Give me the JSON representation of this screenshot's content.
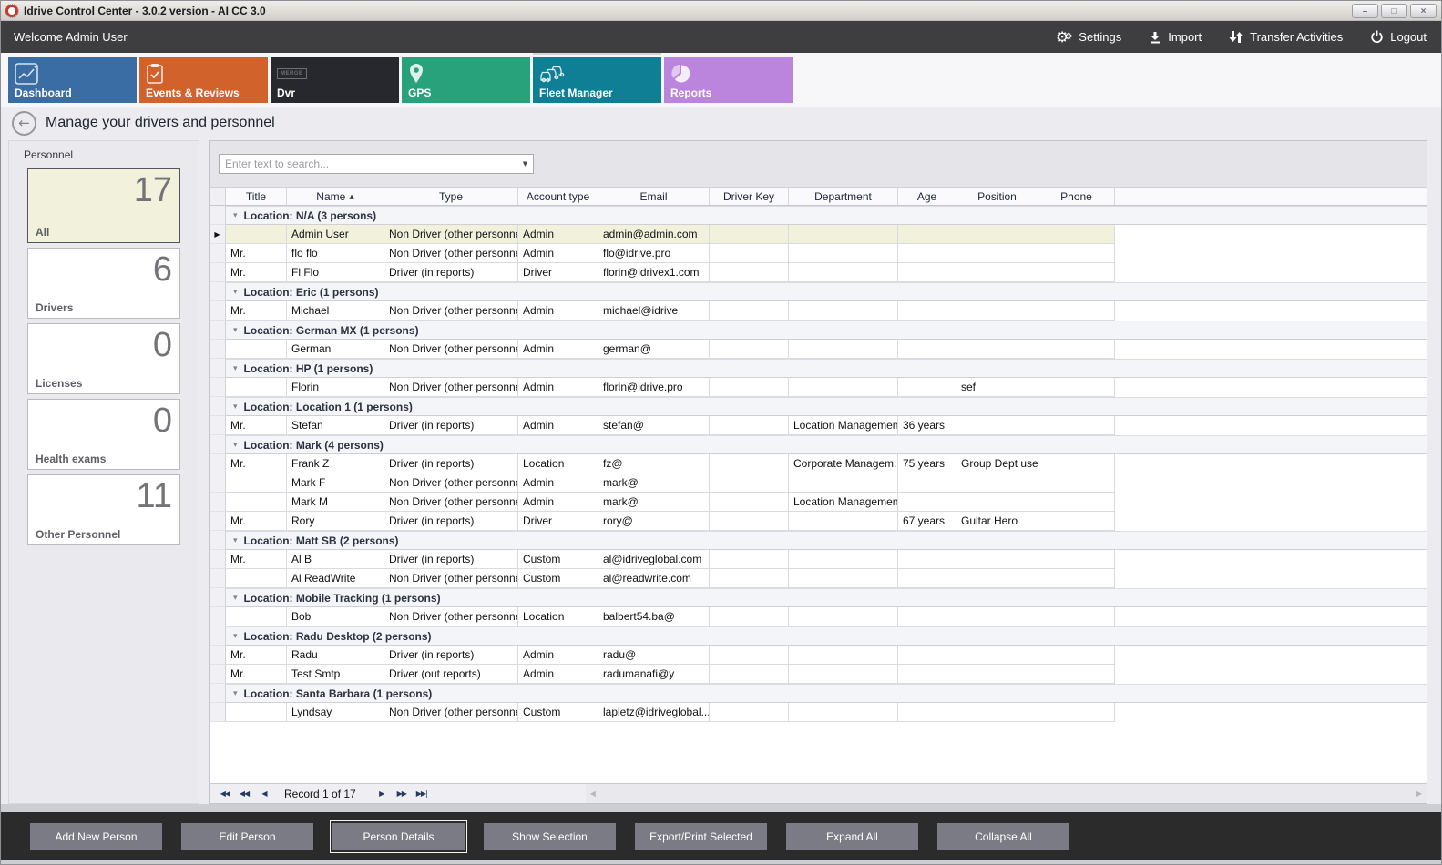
{
  "window": {
    "title": "Idrive Control Center - 3.0.2 version - AI CC 3.0",
    "controls": [
      "minimize",
      "maximize",
      "close"
    ]
  },
  "menubar": {
    "welcome": "Welcome Admin User",
    "items": [
      {
        "label": "Settings",
        "icon": "gears-icon"
      },
      {
        "label": "Import",
        "icon": "import-icon"
      },
      {
        "label": "Transfer Activities",
        "icon": "transfer-icon"
      },
      {
        "label": "Logout",
        "icon": "power-icon"
      }
    ]
  },
  "tabs": [
    {
      "label": "Dashboard",
      "icon": "chart-icon",
      "color": "#3a6da4",
      "selected": false
    },
    {
      "label": "Events & Reviews",
      "icon": "clipboard-icon",
      "color": "#d2622c",
      "selected": false
    },
    {
      "label": "Dvr",
      "icon": "merge-logo-icon",
      "icon_text": "MERGE",
      "color": "#26282d",
      "selected": false
    },
    {
      "label": "GPS",
      "icon": "map-pin-icon",
      "color": "#27a27b",
      "selected": false
    },
    {
      "label": "Fleet Manager",
      "icon": "vehicles-icon",
      "color": "#0f7f96",
      "selected": true
    },
    {
      "label": "Reports",
      "icon": "pie-chart-icon",
      "color": "#bb85dd",
      "selected": false
    }
  ],
  "page": {
    "heading": "Manage your drivers and personnel"
  },
  "sidebar": {
    "title": "Personnel",
    "cards": [
      {
        "label": "All",
        "count": "17",
        "selected": true
      },
      {
        "label": "Drivers",
        "count": "6",
        "selected": false
      },
      {
        "label": "Licenses",
        "count": "0",
        "selected": false
      },
      {
        "label": "Health exams",
        "count": "0",
        "selected": false
      },
      {
        "label": "Other Personnel",
        "count": "11",
        "selected": false
      }
    ]
  },
  "search": {
    "placeholder": "Enter text to search..."
  },
  "table": {
    "columns": [
      {
        "key": "title",
        "label": "Title"
      },
      {
        "key": "name",
        "label": "Name",
        "sorted": "asc"
      },
      {
        "key": "type",
        "label": "Type"
      },
      {
        "key": "account_type",
        "label": "Account type"
      },
      {
        "key": "email",
        "label": "Email"
      },
      {
        "key": "driver_key",
        "label": "Driver Key"
      },
      {
        "key": "department",
        "label": "Department"
      },
      {
        "key": "age",
        "label": "Age"
      },
      {
        "key": "position",
        "label": "Position"
      },
      {
        "key": "phone",
        "label": "Phone"
      }
    ],
    "groups": [
      {
        "label": "Location: N/A (3 persons)",
        "rows": [
          {
            "selected": true,
            "title": "",
            "name": "Admin User",
            "type": "Non Driver (other personnel)",
            "account_type": "Admin",
            "email": "admin@admin.com",
            "driver_key": "",
            "department": "",
            "age": "",
            "position": "",
            "phone": ""
          },
          {
            "selected": false,
            "title": "Mr.",
            "name": "flo flo",
            "type": "Non Driver (other personnel)",
            "account_type": "Admin",
            "email": "flo@idrive.pro",
            "driver_key": "",
            "department": "",
            "age": "",
            "position": "",
            "phone": ""
          },
          {
            "selected": false,
            "title": "Mr.",
            "name": "Fl Flo",
            "type": "Driver (in reports)",
            "account_type": "Driver",
            "email": "florin@idrivex1.com",
            "driver_key": "",
            "department": "",
            "age": "",
            "position": "",
            "phone": ""
          }
        ]
      },
      {
        "label": "Location: Eric (1 persons)",
        "rows": [
          {
            "selected": false,
            "title": "Mr.",
            "name": "Michael",
            "type": "Non Driver (other personnel)",
            "account_type": "Admin",
            "email": "michael@idrive",
            "driver_key": "",
            "department": "",
            "age": "",
            "position": "",
            "phone": ""
          }
        ]
      },
      {
        "label": "Location: German MX (1 persons)",
        "rows": [
          {
            "selected": false,
            "title": "",
            "name": "German",
            "type": "Non Driver (other personnel)",
            "account_type": "Admin",
            "email": "german@",
            "driver_key": "",
            "department": "",
            "age": "",
            "position": "",
            "phone": ""
          }
        ]
      },
      {
        "label": "Location: HP (1 persons)",
        "rows": [
          {
            "selected": false,
            "title": "",
            "name": "Florin",
            "type": "Non Driver (other personnel)",
            "account_type": "Admin",
            "email": "florin@idrive.pro",
            "driver_key": "",
            "department": "",
            "age": "",
            "position": "sef",
            "phone": ""
          }
        ]
      },
      {
        "label": "Location: Location 1 (1 persons)",
        "rows": [
          {
            "selected": false,
            "title": "Mr.",
            "name": "Stefan",
            "type": "Driver (in reports)",
            "account_type": "Admin",
            "email": "stefan@",
            "driver_key": "",
            "department": "Location Management",
            "age": "36 years",
            "position": "",
            "phone": ""
          }
        ]
      },
      {
        "label": "Location: Mark (4 persons)",
        "rows": [
          {
            "selected": false,
            "title": "Mr.",
            "name": "Frank Z",
            "type": "Driver (in reports)",
            "account_type": "Location",
            "email": "fz@",
            "driver_key": "",
            "department": "Corporate Managem...",
            "age": "75 years",
            "position": "Group Dept user",
            "phone": ""
          },
          {
            "selected": false,
            "title": "",
            "name": "Mark F",
            "type": "Non Driver (other personnel)",
            "account_type": "Admin",
            "email": "mark@",
            "driver_key": "",
            "department": "",
            "age": "",
            "position": "",
            "phone": ""
          },
          {
            "selected": false,
            "title": "",
            "name": "Mark M",
            "type": "Non Driver (other personnel)",
            "account_type": "Admin",
            "email": "mark@",
            "driver_key": "",
            "department": "Location Management",
            "age": "",
            "position": "",
            "phone": ""
          },
          {
            "selected": false,
            "title": "Mr.",
            "name": "Rory",
            "type": "Driver (in reports)",
            "account_type": "Driver",
            "email": "rory@",
            "driver_key": "",
            "department": "",
            "age": "67 years",
            "position": "Guitar Hero",
            "phone": ""
          }
        ]
      },
      {
        "label": "Location: Matt SB (2 persons)",
        "rows": [
          {
            "selected": false,
            "title": "Mr.",
            "name": "Al B",
            "type": "Driver (in reports)",
            "account_type": "Custom",
            "email": "al@idriveglobal.com",
            "driver_key": "",
            "department": "",
            "age": "",
            "position": "",
            "phone": ""
          },
          {
            "selected": false,
            "title": "",
            "name": "Al ReadWrite",
            "type": "Non Driver (other personnel)",
            "account_type": "Custom",
            "email": "al@readwrite.com",
            "driver_key": "",
            "department": "",
            "age": "",
            "position": "",
            "phone": ""
          }
        ]
      },
      {
        "label": "Location: Mobile Tracking (1 persons)",
        "rows": [
          {
            "selected": false,
            "title": "",
            "name": "Bob",
            "type": "Non Driver (other personnel)",
            "account_type": "Location",
            "email": "balbert54.ba@",
            "driver_key": "",
            "department": "",
            "age": "",
            "position": "",
            "phone": ""
          }
        ]
      },
      {
        "label": "Location: Radu Desktop (2 persons)",
        "rows": [
          {
            "selected": false,
            "title": "Mr.",
            "name": "Radu",
            "type": "Driver (in reports)",
            "account_type": "Admin",
            "email": "radu@",
            "driver_key": "",
            "department": "",
            "age": "",
            "position": "",
            "phone": ""
          },
          {
            "selected": false,
            "title": "Mr.",
            "name": "Test Smtp",
            "type": "Driver (out reports)",
            "account_type": "Admin",
            "email": "radumanafi@y",
            "driver_key": "",
            "department": "",
            "age": "",
            "position": "",
            "phone": ""
          }
        ]
      },
      {
        "label": "Location: Santa Barbara (1 persons)",
        "rows": [
          {
            "selected": false,
            "title": "",
            "name": "Lyndsay",
            "type": "Non Driver (other personnel)",
            "account_type": "Custom",
            "email": "lapletz@idriveglobal....",
            "driver_key": "",
            "department": "",
            "age": "",
            "position": "",
            "phone": ""
          }
        ]
      }
    ]
  },
  "navigator": {
    "left_buttons": [
      "first",
      "prev-page",
      "prev"
    ],
    "record_text": "Record 1 of 17",
    "right_buttons": [
      "next",
      "next-page",
      "last"
    ]
  },
  "footer": {
    "buttons": [
      {
        "label": "Add New Person",
        "focused": false
      },
      {
        "label": "Edit Person",
        "focused": false
      },
      {
        "label": "Person Details",
        "focused": true
      },
      {
        "label": "Show Selection",
        "focused": false
      },
      {
        "label": "Export/Print Selected",
        "focused": false
      },
      {
        "label": "Expand All",
        "focused": false
      },
      {
        "label": "Collapse All",
        "focused": false
      }
    ]
  }
}
